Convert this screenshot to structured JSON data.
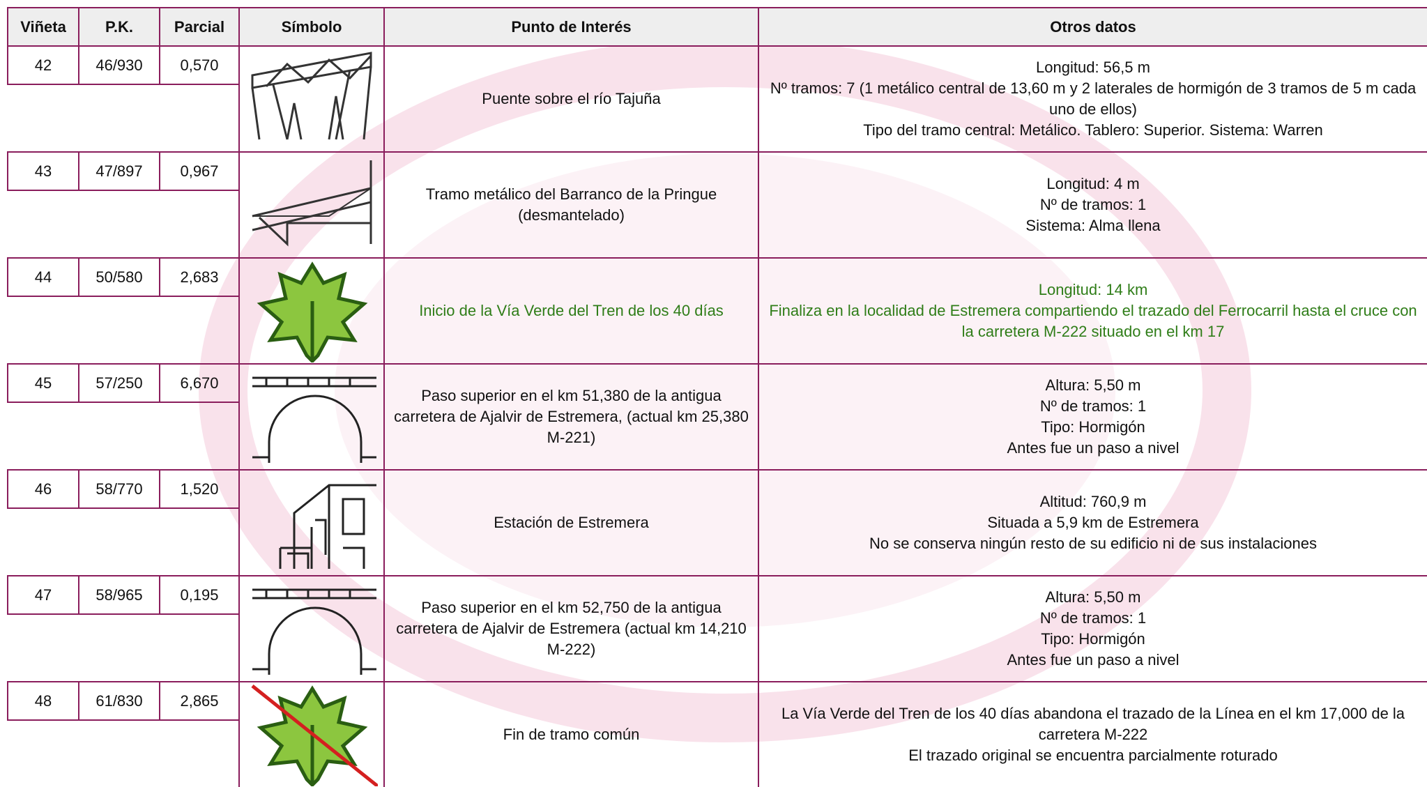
{
  "table": {
    "header": [
      "Viñeta",
      "P.K.",
      "Parcial",
      "Símbolo",
      "Punto de Interés",
      "Otros datos"
    ],
    "rows": [
      {
        "vineta": "42",
        "pk": "46/930",
        "parcial": "0,570",
        "punto": "Puente sobre el río Tajuña",
        "otros": [
          "Longitud: 56,5 m",
          "Nº tramos: 7 (1 metálico central de 13,60 m y 2 laterales de hormigón de 3 tramos de 5 m cada uno de ellos)",
          "Tipo del tramo central: Metálico. Tablero: Superior. Sistema: Warren"
        ]
      },
      {
        "vineta": "43",
        "pk": "47/897",
        "parcial": "0,967",
        "punto": "Tramo metálico del Barranco de la Pringue (desmantelado)",
        "otros": [
          "Longitud: 4 m",
          "Nº de tramos: 1",
          "Sistema: Alma llena"
        ]
      },
      {
        "vineta": "44",
        "pk": "50/580",
        "parcial": "2,683",
        "punto": "Inicio de la Vía Verde del Tren de los 40 días",
        "otros": [
          "Longitud: 14 km",
          "Finaliza en la localidad de Estremera compartiendo el trazado del Ferrocarril hasta el cruce con la carretera M-222 situado en el km 17"
        ],
        "color": "#2f7d18"
      },
      {
        "vineta": "45",
        "pk": "57/250",
        "parcial": "6,670",
        "punto": "Paso superior en el km 51,380 de la antigua carretera de Ajalvir de Estremera, (actual km 25,380 M-221)",
        "otros": [
          "Altura: 5,50 m",
          "Nº de tramos: 1",
          "Tipo: Hormigón",
          "Antes fue un paso a nivel"
        ]
      },
      {
        "vineta": "46",
        "pk": "58/770",
        "parcial": "1,520",
        "punto": "Estación de Estremera",
        "otros": [
          "Altitud: 760,9 m",
          "Situada a 5,9 km de Estremera",
          "No se conserva ningún resto de su edificio ni de sus instalaciones"
        ]
      },
      {
        "vineta": "47",
        "pk": "58/965",
        "parcial": "0,195",
        "punto": "Paso superior en el km 52,750 de la antigua carretera de Ajalvir de Estremera (actual km 14,210 M-222)",
        "otros": [
          "Altura: 5,50 m",
          "Nº de tramos: 1",
          "Tipo: Hormigón",
          "Antes fue un paso a nivel"
        ]
      },
      {
        "vineta": "48",
        "pk": "61/830",
        "parcial": "2,865",
        "punto": "Fin de tramo común",
        "otros": [
          "La Vía Verde del Tren de los 40 días abandona el trazado de la Línea en el km 17,000 de la carretera M-222",
          "El trazado original se encuentra parcialmente roturado"
        ]
      }
    ]
  }
}
